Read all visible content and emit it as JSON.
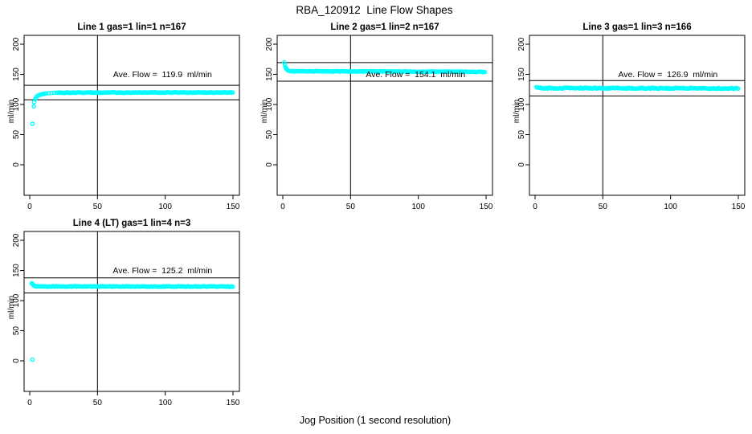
{
  "title": "RBA_120912  Line Flow Shapes",
  "xlabel": "Jog Position (1 second resolution)",
  "ylabel": "ml/min",
  "accent_color": "#00FFFF",
  "line_color": "#000000",
  "chart_data": {
    "type": "scatter",
    "title": "RBA_120912  Line Flow Shapes",
    "xlabel": "Jog Position (1 second resolution)",
    "ylabel": "ml/min",
    "xlim": [
      0,
      150
    ],
    "ylim": [
      0,
      200
    ],
    "x_ticks": [
      0,
      50,
      100,
      150
    ],
    "y_ticks": [
      0,
      50,
      100,
      150,
      200
    ],
    "vline_x": 50,
    "point_style": "open-circle",
    "point_color": "#00FFFF",
    "panels": [
      {
        "title": "Line 1 gas=1 lin=1 n=167",
        "ave_flow": 119.9,
        "ave_label": "Ave. Flow =  119.9  ml/min",
        "n": 167,
        "hlines": [
          131.9,
          107.9
        ],
        "lead_points": [
          [
            2,
            68
          ],
          [
            3,
            97
          ],
          [
            3.2,
            104
          ],
          [
            4,
            109
          ],
          [
            4.6,
            111
          ],
          [
            5,
            113
          ],
          [
            6,
            114.5
          ],
          [
            7,
            115.5
          ],
          [
            8,
            116.5
          ],
          [
            9,
            117
          ],
          [
            10,
            117.5
          ],
          [
            11,
            117.9
          ],
          [
            12,
            118.2
          ],
          [
            14,
            118.8
          ],
          [
            16,
            119.1
          ],
          [
            18,
            119.4
          ],
          [
            20,
            119.6
          ]
        ],
        "flat": {
          "start_x": 21,
          "end_x": 150,
          "start_value": 119.7,
          "end_value": 119.9,
          "jitter": 0.5
        }
      },
      {
        "title": "Line 2 gas=1 lin=2 n=167",
        "ave_flow": 154.1,
        "ave_label": "Ave. Flow =  154.1  ml/min",
        "n": 167,
        "hlines": [
          169.5,
          138.7
        ],
        "lead_points": [
          [
            1,
            170
          ],
          [
            1.5,
            166
          ],
          [
            2,
            162
          ],
          [
            2.5,
            159.5
          ],
          [
            3,
            158
          ],
          [
            3.5,
            157
          ],
          [
            4,
            156.3
          ],
          [
            5,
            155.6
          ]
        ],
        "flat": {
          "start_x": 6,
          "end_x": 150,
          "start_value": 155.2,
          "end_value": 154.2,
          "jitter": 0.5
        }
      },
      {
        "title": "Line 3 gas=1 lin=3 n=166",
        "ave_flow": 126.9,
        "ave_label": "Ave. Flow =  126.9  ml/min",
        "n": 166,
        "hlines": [
          139.6,
          114.2
        ],
        "lead_points": [
          [
            1,
            128.8
          ],
          [
            2,
            128.2
          ],
          [
            3,
            127.8
          ]
        ],
        "flat": {
          "start_x": 4,
          "end_x": 150,
          "start_value": 127.2,
          "end_value": 126.7,
          "jitter": 0.9
        }
      },
      {
        "title": "Line 4 (LT) gas=1 lin=4 n=3",
        "ave_flow": 125.2,
        "ave_label": "Ave. Flow =  125.2  ml/min",
        "n": 3,
        "hlines": [
          137.7,
          112.7
        ],
        "lead_points": [
          [
            2,
            2
          ],
          [
            1.5,
            128.5
          ],
          [
            2,
            127.5
          ],
          [
            2.6,
            126
          ],
          [
            3.2,
            124.8
          ]
        ],
        "flat": {
          "start_x": 4,
          "end_x": 150,
          "start_value": 123.5,
          "end_value": 123.3,
          "jitter": 0.5
        }
      }
    ]
  }
}
